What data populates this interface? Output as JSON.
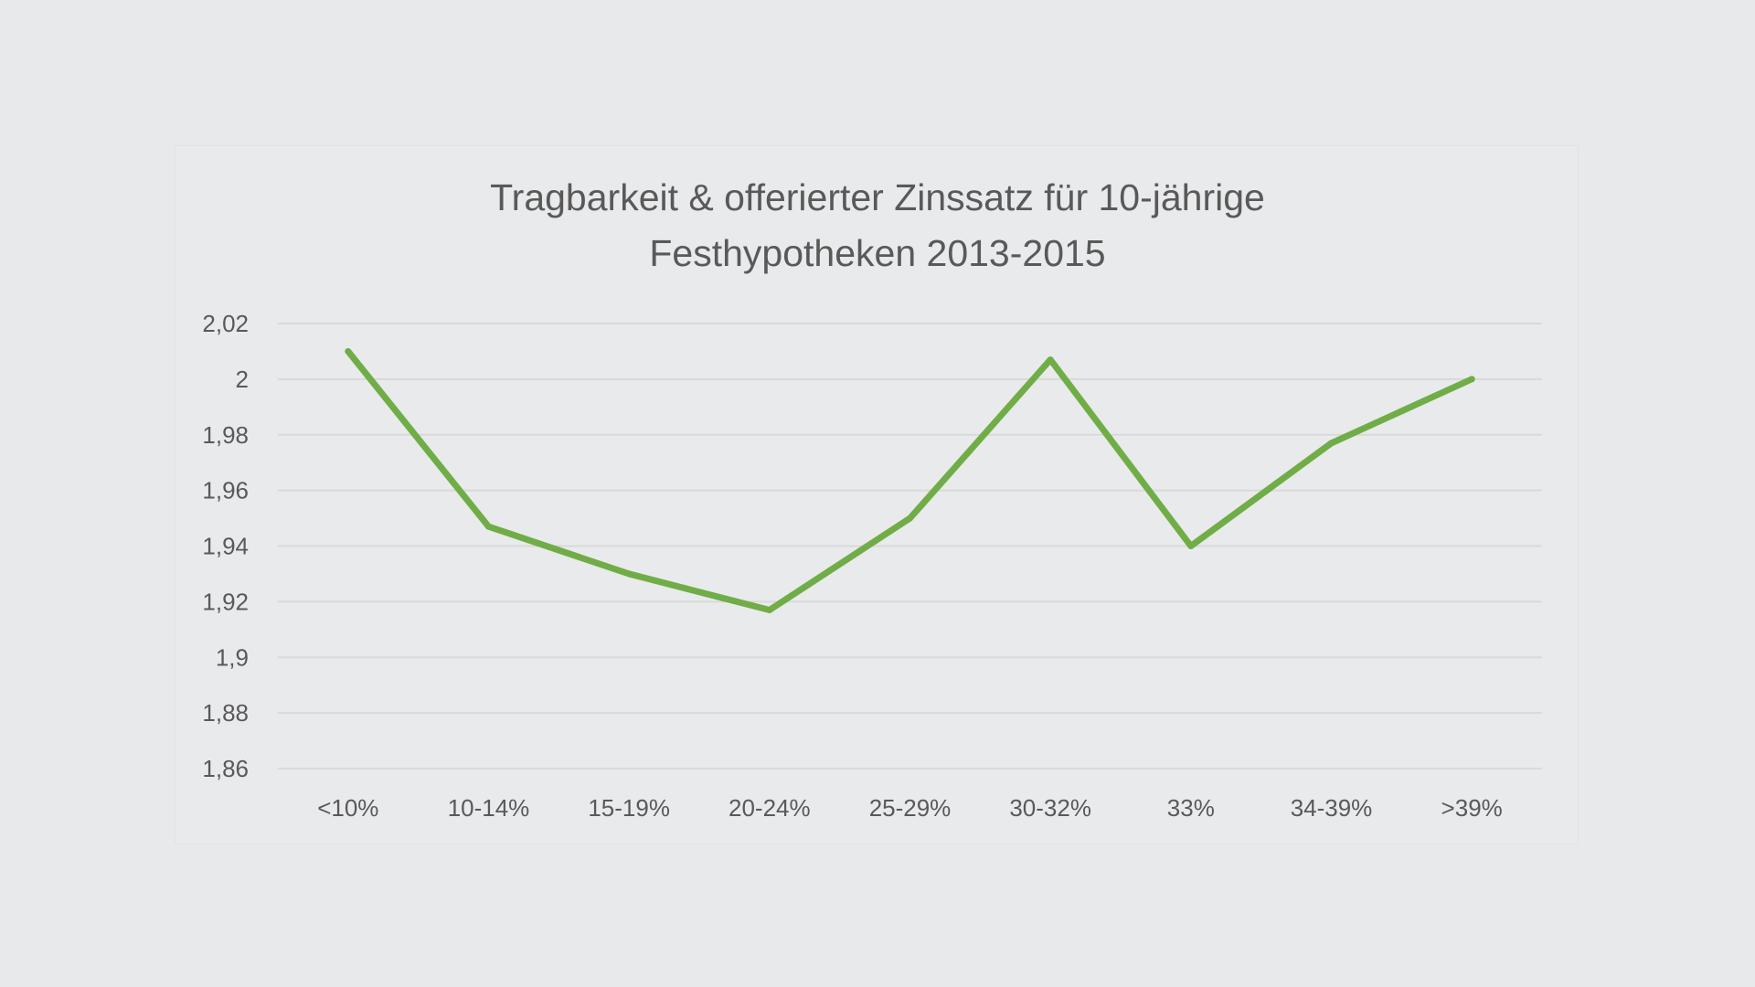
{
  "chart_data": {
    "type": "line",
    "title_lines": [
      "Tragbarkeit & offerierter Zinssatz für 10-jährige",
      "Festhypotheken 2013-2015"
    ],
    "categories": [
      "<10%",
      "10-14%",
      "15-19%",
      "20-24%",
      "25-29%",
      "30-32%",
      "33%",
      "34-39%",
      ">39%"
    ],
    "series": [
      {
        "name": "Zinssatz",
        "color": "#70ad47",
        "values": [
          2.01,
          1.947,
          1.93,
          1.917,
          1.95,
          2.007,
          1.94,
          1.977,
          2.0
        ]
      }
    ],
    "ylim": [
      1.86,
      2.02
    ],
    "y_ticks": [
      2.02,
      2.0,
      1.98,
      1.96,
      1.94,
      1.92,
      1.9,
      1.88,
      1.86
    ],
    "y_tick_labels": [
      "2,02",
      "2",
      "1,98",
      "1,96",
      "1,94",
      "1,92",
      "1,9",
      "1,88",
      "1,86"
    ],
    "grid": true,
    "legend": "none",
    "xlabel": "",
    "ylabel": ""
  }
}
